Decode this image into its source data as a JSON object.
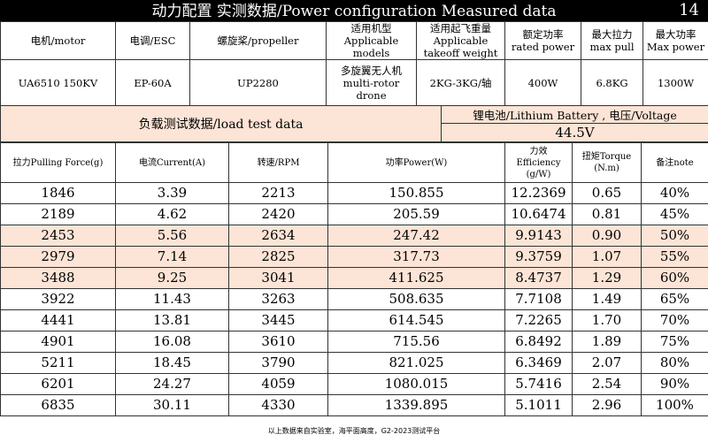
{
  "title": "动力配置 实测数据/Power configuration Measured data",
  "page_number": "14",
  "spec_table": {
    "headers": [
      "电机/motor",
      "电调/ESC",
      "螺旋桨/propeller",
      "适用机型\nApplicable\nmodels",
      "适用起飞重量\nApplicable\ntakeoff weight",
      "额定功率\nrated power",
      "最大拉力\nmax pull",
      "最大功率\nMax power"
    ],
    "values": [
      "UA6510 150KV",
      "EP-60A",
      "UP2280",
      "多旋翼无人机\nmulti-rotor\ndrone",
      "2KG-3KG/轴",
      "400W",
      "6.8KG",
      "1300W"
    ]
  },
  "load_test_label": "负载测试数据/load test data",
  "battery_label": "锂电池/Lithium Battery , 电压/Voltage",
  "voltage": "44.5V",
  "data_table": {
    "headers": [
      "拉力Pulling Force(g)",
      "电流Current(A)",
      "转速/RPM",
      "功率Power(W)",
      "力效\nEfficiency\n(g/W)",
      "扭矩Torque\n(N.m)",
      "备注note"
    ],
    "rows": [
      [
        "1846",
        "3.39",
        "2213",
        "150.855",
        "12.2369",
        "0.65",
        "40%"
      ],
      [
        "2189",
        "4.62",
        "2420",
        "205.59",
        "10.6474",
        "0.81",
        "45%"
      ],
      [
        "2453",
        "5.56",
        "2634",
        "247.42",
        "9.9143",
        "0.90",
        "50%"
      ],
      [
        "2979",
        "7.14",
        "2825",
        "317.73",
        "9.3759",
        "1.07",
        "55%"
      ],
      [
        "3488",
        "9.25",
        "3041",
        "411.625",
        "8.4737",
        "1.29",
        "60%"
      ],
      [
        "3922",
        "11.43",
        "3263",
        "508.635",
        "7.7108",
        "1.49",
        "65%"
      ],
      [
        "4441",
        "13.81",
        "3445",
        "614.545",
        "7.2265",
        "1.70",
        "70%"
      ],
      [
        "4901",
        "16.08",
        "3610",
        "715.56",
        "6.8492",
        "1.89",
        "75%"
      ],
      [
        "5211",
        "18.45",
        "3790",
        "821.025",
        "6.3469",
        "2.07",
        "80%"
      ],
      [
        "6201",
        "24.27",
        "4059",
        "1080.015",
        "5.7416",
        "2.54",
        "90%"
      ],
      [
        "6835",
        "30.11",
        "4330",
        "1339.895",
        "5.1011",
        "2.96",
        "100%"
      ]
    ],
    "highlighted_rows": [
      2,
      3,
      4
    ]
  },
  "footer": "以上数据来自实验室，海平面高度，G2-2023测试平台",
  "colors": {
    "highlight": "#fce4d6",
    "title_bar": "#000000",
    "title_text": "#ffffff"
  }
}
